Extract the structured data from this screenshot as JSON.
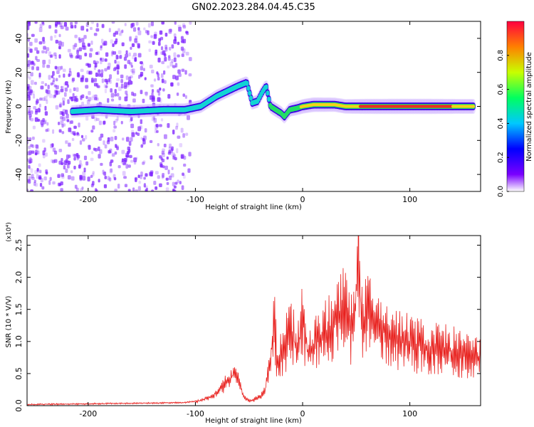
{
  "title": "GN02.2023.284.04.45.C35",
  "colors": {
    "frame": "#000000",
    "snr_line": "#e8211e",
    "spec_scatter": "#7a1cff",
    "spec_track_edge": "#3a00e6",
    "spec_track_mid": "#12d4d4",
    "spec_track_core": "#f2d21a",
    "spec_track_peak": "#e83020"
  },
  "chart_data": [
    {
      "type": "heatmap",
      "xlabel": "Height of straight line (km)",
      "ylabel": "Frequency (Hz)",
      "xlim": [
        -257,
        166
      ],
      "ylim": [
        -50,
        50
      ],
      "xticks": [
        -200,
        -100,
        0,
        100
      ],
      "xtick_labels": [
        "-200",
        "-100",
        "0",
        "100"
      ],
      "yticks": [
        -40,
        -20,
        0,
        20,
        40
      ],
      "ytick_labels": [
        "-40",
        "-20",
        "0",
        "20",
        "40"
      ],
      "colorbar": {
        "label": "Normalized spectral amplitude",
        "range": [
          0,
          1
        ],
        "ticks": [
          0.0,
          0.2,
          0.4,
          0.6,
          0.8
        ],
        "tick_labels": [
          "0.0",
          "0.2",
          "0.4",
          "0.6",
          "0.8"
        ],
        "colormap": "rainbow (violet to red)"
      },
      "track": {
        "x": [
          -215,
          -190,
          -160,
          -130,
          -110,
          -95,
          -80,
          -70,
          -60,
          -52,
          -47,
          -42,
          -38,
          -34,
          -30,
          -25,
          -20,
          -17,
          -12,
          -5,
          0,
          10,
          20,
          30,
          40,
          60,
          80,
          100,
          120,
          140,
          160
        ],
        "y": [
          -3,
          -2,
          -3,
          -2,
          -2,
          0,
          6,
          9,
          12,
          14,
          2,
          3,
          8,
          12,
          0,
          -2,
          -4,
          -6,
          -2,
          -1,
          0,
          1,
          1,
          1,
          0,
          0,
          0,
          0,
          0,
          0,
          0
        ],
        "amplitude": [
          0.35,
          0.4,
          0.42,
          0.4,
          0.4,
          0.45,
          0.5,
          0.5,
          0.5,
          0.45,
          0.45,
          0.5,
          0.45,
          0.4,
          0.6,
          0.65,
          0.6,
          0.55,
          0.6,
          0.7,
          0.8,
          0.85,
          0.8,
          0.75,
          0.8,
          0.95,
          0.98,
          0.98,
          0.98,
          0.9,
          0.85
        ]
      },
      "scatter_band_x": [
        -257,
        -105
      ]
    },
    {
      "type": "line",
      "xlabel": "Height of straight line (km)",
      "ylabel": "SNR (10 * V/V)",
      "y_multiplier": "(x10⁴)",
      "xlim": [
        -257,
        166
      ],
      "ylim": [
        0,
        2.65
      ],
      "xticks": [
        -200,
        -100,
        0,
        100
      ],
      "xtick_labels": [
        "-200",
        "-100",
        "0",
        "100"
      ],
      "yticks": [
        0,
        0.5,
        1.0,
        1.5,
        2.0,
        2.5
      ],
      "ytick_labels": [
        "0.0",
        "0.5",
        "1.0",
        "1.5",
        "2.0",
        "2.5"
      ],
      "series": [
        {
          "x": [
            -257,
            -200,
            -150,
            -110,
            -95,
            -85,
            -75,
            -68,
            -62,
            -58,
            -55,
            -50,
            -45,
            -40,
            -35,
            -30,
            -27,
            -25,
            -23,
            -20,
            -15,
            -10,
            -5,
            0,
            5,
            10,
            15,
            20,
            25,
            30,
            35,
            40,
            45,
            50,
            52,
            55,
            60,
            65,
            70,
            80,
            90,
            100,
            110,
            120,
            130,
            140,
            150,
            160,
            166
          ],
          "y": [
            0.02,
            0.03,
            0.04,
            0.05,
            0.08,
            0.15,
            0.3,
            0.45,
            0.55,
            0.3,
            0.15,
            0.08,
            0.1,
            0.15,
            0.25,
            0.7,
            1.4,
            1.1,
            0.6,
            0.9,
            1.1,
            1.2,
            0.9,
            1.45,
            0.9,
            1.0,
            1.1,
            1.2,
            1.3,
            1.4,
            1.5,
            1.6,
            1.3,
            1.8,
            2.6,
            1.4,
            1.5,
            1.4,
            1.3,
            1.2,
            1.1,
            1.05,
            1.0,
            0.95,
            0.95,
            0.9,
            0.85,
            0.8,
            0.75
          ]
        }
      ]
    }
  ]
}
